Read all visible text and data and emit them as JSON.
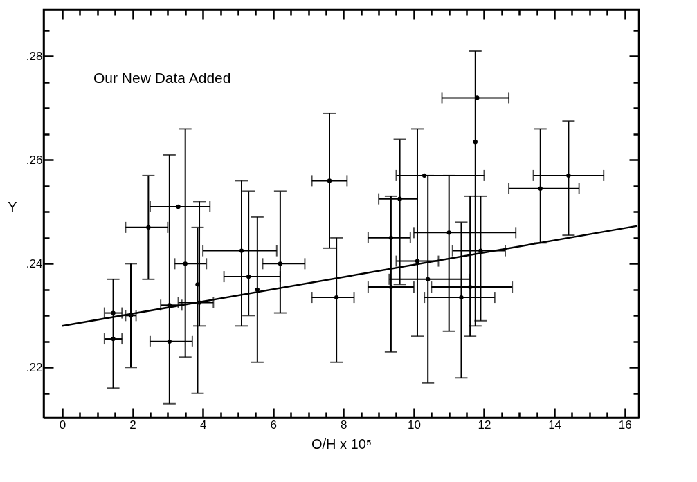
{
  "chart_data": {
    "type": "scatter",
    "xlabel": "O/H x 10⁵",
    "ylabel": "Y",
    "annotations": [
      "Our New Data Added"
    ],
    "xlim": [
      -0.53,
      16.4
    ],
    "ylim": [
      0.2103,
      0.289
    ],
    "xticks": [
      0,
      {
        "value": 0.5,
        "label": null
      },
      {
        "value": 1,
        "label": null
      },
      {
        "value": 1.5,
        "label": null
      },
      2,
      {
        "value": 2.5,
        "label": null
      },
      {
        "value": 3,
        "label": null
      },
      {
        "value": 3.5,
        "label": null
      },
      4,
      {
        "value": 4.5,
        "label": null
      },
      {
        "value": 5,
        "label": null
      },
      {
        "value": 5.5,
        "label": null
      },
      6,
      {
        "value": 6.5,
        "label": null
      },
      {
        "value": 7,
        "label": null
      },
      {
        "value": 7.5,
        "label": null
      },
      8,
      {
        "value": 8.5,
        "label": null
      },
      {
        "value": 9,
        "label": null
      },
      {
        "value": 9.5,
        "label": null
      },
      10,
      {
        "value": 10.5,
        "label": null
      },
      {
        "value": 11,
        "label": null
      },
      {
        "value": 11.5,
        "label": null
      },
      12,
      {
        "value": 12.5,
        "label": null
      },
      {
        "value": 13,
        "label": null
      },
      {
        "value": 13.5,
        "label": null
      },
      14,
      {
        "value": 14.5,
        "label": null
      },
      {
        "value": 15,
        "label": null
      },
      {
        "value": 15.5,
        "label": null
      },
      16
    ],
    "yticks": [
      {
        "value": 0.215,
        "label": null
      },
      {
        "value": 0.22,
        "label": ".22"
      },
      {
        "value": 0.225,
        "label": null
      },
      {
        "value": 0.23,
        "label": null
      },
      {
        "value": 0.235,
        "label": null
      },
      {
        "value": 0.24,
        "label": ".24"
      },
      {
        "value": 0.245,
        "label": null
      },
      {
        "value": 0.25,
        "label": null
      },
      {
        "value": 0.255,
        "label": null
      },
      {
        "value": 0.26,
        "label": ".26"
      },
      {
        "value": 0.265,
        "label": null
      },
      {
        "value": 0.27,
        "label": null
      },
      {
        "value": 0.275,
        "label": null
      },
      {
        "value": 0.28,
        "label": ".28"
      },
      {
        "value": 0.285,
        "label": null
      }
    ],
    "grid": false,
    "marker": "circle",
    "series": [
      {
        "color": "#000000",
        "x": [
          1.45,
          1.45,
          1.95,
          2.45,
          3.05,
          3.3,
          3.5,
          3.9,
          3.05,
          3.85,
          5.1,
          5.3,
          5.55,
          6.2,
          7.6,
          7.8,
          9.35,
          9.35,
          9.6,
          10.1,
          10.4,
          11.0,
          11.35,
          11.75,
          11.8,
          11.6,
          11.9,
          13.6,
          14.4,
          10.3
        ],
        "values": [
          0.2305,
          0.2255,
          0.23,
          0.247,
          0.232,
          0.251,
          0.24,
          0.2325,
          0.225,
          0.236,
          0.2425,
          0.2375,
          0.235,
          0.24,
          0.256,
          0.2335,
          0.245,
          0.2355,
          0.2525,
          0.2405,
          0.237,
          0.246,
          0.2335,
          0.2635,
          0.272,
          0.2355,
          0.2425,
          0.2545,
          0.257,
          0.257
        ],
        "errors": [
          [
            0.216,
            0.237
          ],
          null,
          [
            0.22,
            0.24
          ],
          [
            0.237,
            0.257
          ],
          [
            0.213,
            0.261
          ],
          null,
          [
            0.222,
            0.266
          ],
          [
            0.228,
            0.252
          ],
          null,
          [
            0.215,
            0.247
          ],
          [
            0.228,
            0.256
          ],
          [
            0.23,
            0.254
          ],
          [
            0.221,
            0.249
          ],
          [
            0.2305,
            0.254
          ],
          [
            0.243,
            0.269
          ],
          [
            0.221,
            0.245
          ],
          [
            0.223,
            0.253
          ],
          null,
          [
            0.236,
            0.264
          ],
          [
            0.226,
            0.266
          ],
          [
            0.217,
            0.257
          ],
          [
            0.227,
            0.257
          ],
          [
            0.218,
            0.248
          ],
          [
            0.228,
            0.281
          ],
          null,
          [
            0.226,
            0.253
          ],
          [
            0.229,
            0.253
          ],
          [
            0.244,
            0.266
          ],
          [
            0.2455,
            0.2675
          ],
          null
        ],
        "xerrors": [
          [
            1.2,
            1.7
          ],
          [
            1.2,
            1.7
          ],
          [
            1.8,
            2.1
          ],
          [
            1.8,
            3.0
          ],
          [
            2.8,
            3.4
          ],
          [
            2.5,
            4.2
          ],
          [
            3.2,
            4.1
          ],
          [
            3.3,
            4.3
          ],
          [
            2.5,
            3.7
          ],
          null,
          [
            4.0,
            6.1
          ],
          [
            4.6,
            6.2
          ],
          null,
          [
            5.7,
            6.9
          ],
          [
            7.1,
            8.1
          ],
          [
            7.1,
            8.3
          ],
          [
            8.7,
            9.9
          ],
          [
            8.7,
            10.0
          ],
          [
            9.0,
            10.1
          ],
          [
            9.5,
            10.7
          ],
          [
            9.3,
            11.6
          ],
          [
            10.0,
            12.9
          ],
          [
            10.3,
            12.3
          ],
          null,
          [
            10.8,
            12.7
          ],
          [
            10.5,
            12.8
          ],
          [
            11.1,
            12.6
          ],
          [
            12.7,
            14.7
          ],
          [
            13.4,
            15.4
          ],
          [
            9.5,
            12.0
          ]
        ]
      },
      {
        "type": "line",
        "marker": "none",
        "color": "#000000",
        "x": [
          0,
          16.36
        ],
        "values": [
          0.228,
          0.2473
        ]
      }
    ]
  }
}
